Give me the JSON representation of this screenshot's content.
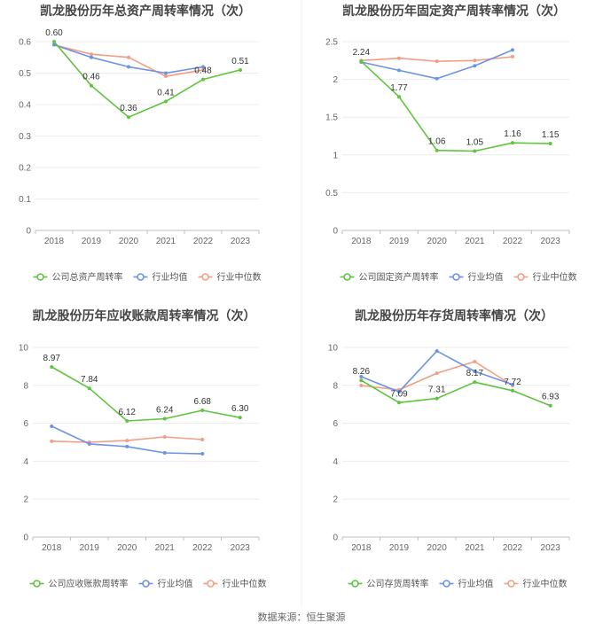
{
  "source": "数据来源：恒生聚源",
  "chart_data": [
    {
      "type": "line",
      "title": "凯龙股份历年总资产周转率情况（次）",
      "categories": [
        "2018",
        "2019",
        "2020",
        "2021",
        "2022",
        "2023"
      ],
      "ylim": [
        0,
        0.6
      ],
      "yticks": [
        0,
        0.1,
        0.2,
        0.3,
        0.4,
        0.5,
        0.6
      ],
      "ytick_labels": [
        "0",
        "0.1",
        "0.2",
        "0.3",
        "0.4",
        "0.5",
        "0.6"
      ],
      "grid": true,
      "legend": "bottom",
      "series": [
        {
          "name": "公司总资产周转率",
          "color": "#5fc43e",
          "values": [
            0.6,
            0.46,
            0.36,
            0.41,
            0.48,
            0.51
          ],
          "labels": [
            "0.60",
            "0.46",
            "0.36",
            "0.41",
            "0.48",
            "0.51"
          ]
        },
        {
          "name": "行业均值",
          "color": "#6b93e6",
          "values": [
            0.59,
            0.55,
            0.52,
            0.5,
            0.52,
            null
          ]
        },
        {
          "name": "行业中位数",
          "color": "#f29e85",
          "values": [
            0.59,
            0.56,
            0.55,
            0.49,
            0.51,
            null
          ]
        }
      ]
    },
    {
      "type": "line",
      "title": "凯龙股份历年固定资产周转率情况（次）",
      "categories": [
        "2018",
        "2019",
        "2020",
        "2021",
        "2022",
        "2023"
      ],
      "ylim": [
        0,
        2.5
      ],
      "yticks": [
        0,
        0.5,
        1,
        1.5,
        2,
        2.5
      ],
      "ytick_labels": [
        "0",
        "0.5",
        "1",
        "1.5",
        "2",
        "2.5"
      ],
      "grid": true,
      "legend": "bottom",
      "series": [
        {
          "name": "公司固定资产周转率",
          "color": "#5fc43e",
          "values": [
            2.24,
            1.77,
            1.06,
            1.05,
            1.16,
            1.15
          ],
          "labels": [
            "2.24",
            "1.77",
            "1.06",
            "1.05",
            "1.16",
            "1.15"
          ]
        },
        {
          "name": "行业均值",
          "color": "#6b93e6",
          "values": [
            2.23,
            2.12,
            2.01,
            2.18,
            2.39,
            null
          ]
        },
        {
          "name": "行业中位数",
          "color": "#f29e85",
          "values": [
            2.25,
            2.28,
            2.24,
            2.25,
            2.3,
            null
          ]
        }
      ]
    },
    {
      "type": "line",
      "title": "凯龙股份历年应收账款周转率情况（次）",
      "categories": [
        "2018",
        "2019",
        "2020",
        "2021",
        "2022",
        "2023"
      ],
      "ylim": [
        0,
        10
      ],
      "yticks": [
        0,
        2,
        4,
        6,
        8,
        10
      ],
      "ytick_labels": [
        "0",
        "2",
        "4",
        "6",
        "8",
        "10"
      ],
      "grid": true,
      "legend": "bottom",
      "series": [
        {
          "name": "公司应收账款周转率",
          "color": "#5fc43e",
          "values": [
            8.97,
            7.84,
            6.12,
            6.24,
            6.68,
            6.3
          ],
          "labels": [
            "8.97",
            "7.84",
            "6.12",
            "6.24",
            "6.68",
            "6.30"
          ]
        },
        {
          "name": "行业均值",
          "color": "#6b93e6",
          "values": [
            5.84,
            4.91,
            4.77,
            4.44,
            4.39,
            null
          ]
        },
        {
          "name": "行业中位数",
          "color": "#f29e85",
          "values": [
            5.05,
            5.0,
            5.09,
            5.28,
            5.14,
            null
          ]
        }
      ]
    },
    {
      "type": "line",
      "title": "凯龙股份历年存货周转率情况（次）",
      "categories": [
        "2018",
        "2019",
        "2020",
        "2021",
        "2022",
        "2023"
      ],
      "ylim": [
        0,
        10
      ],
      "yticks": [
        0,
        2,
        4,
        6,
        8,
        10
      ],
      "ytick_labels": [
        "0",
        "2",
        "4",
        "6",
        "8",
        "10"
      ],
      "grid": true,
      "legend": "bottom",
      "series": [
        {
          "name": "公司存货周转率",
          "color": "#5fc43e",
          "values": [
            8.26,
            7.09,
            7.31,
            8.17,
            7.72,
            6.93
          ],
          "labels": [
            "8.26",
            "7.09",
            "7.31",
            "8.17",
            "7.72",
            "6.93"
          ]
        },
        {
          "name": "行业均值",
          "color": "#6b93e6",
          "values": [
            8.46,
            7.66,
            9.81,
            8.74,
            8.04,
            null
          ]
        },
        {
          "name": "行业中位数",
          "color": "#f29e85",
          "values": [
            7.99,
            7.76,
            8.64,
            9.25,
            7.99,
            null
          ]
        }
      ]
    }
  ]
}
